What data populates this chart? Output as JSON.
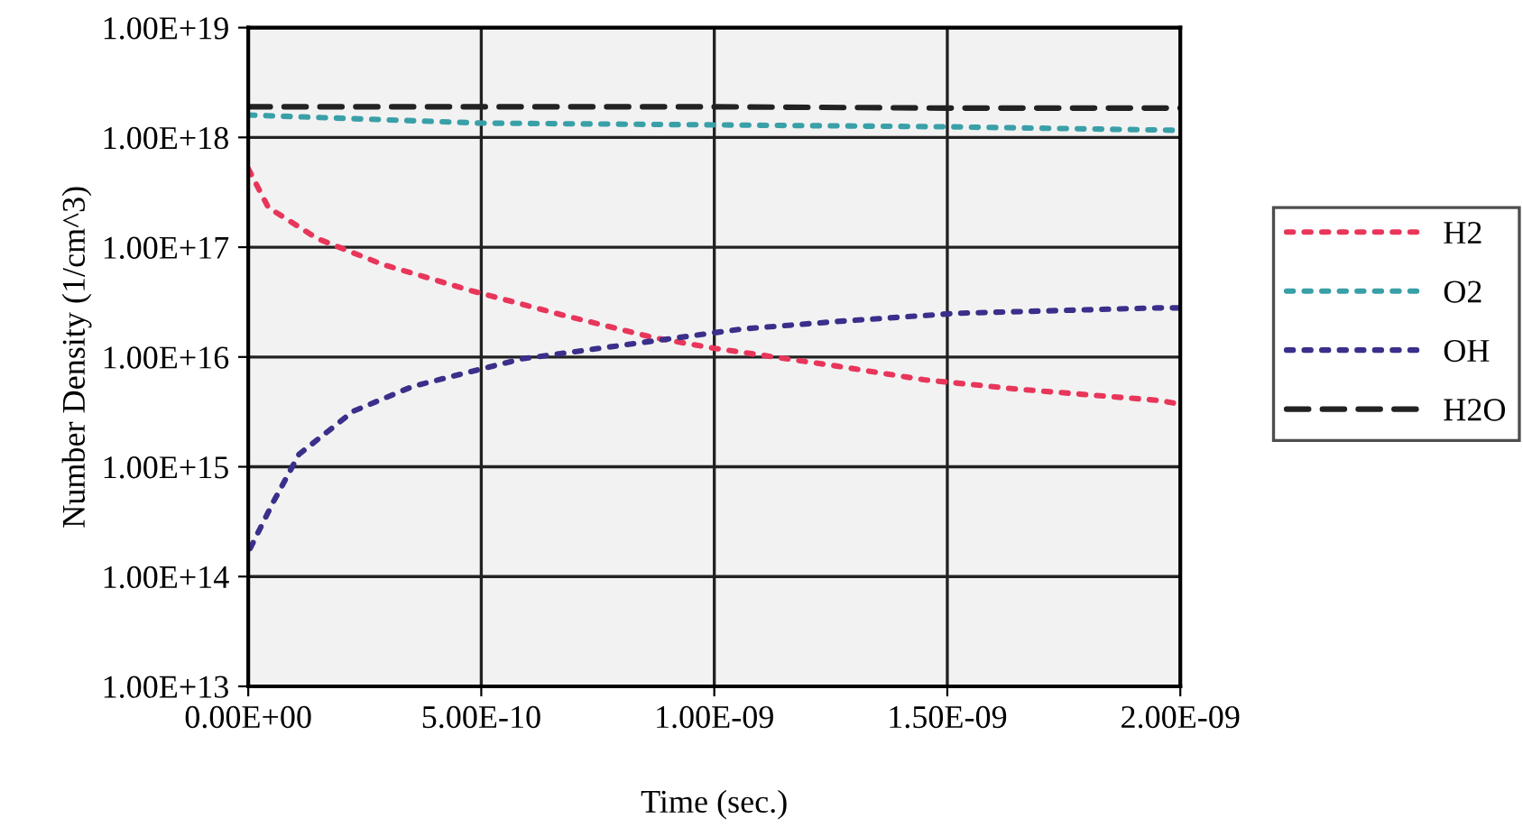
{
  "chart_data": {
    "type": "line",
    "xlabel": "Time (sec.)",
    "ylabel": "Number Density (1/cm^3)",
    "log": "y",
    "grid": true,
    "legend": "right",
    "marker": "none",
    "xlim": [
      0,
      2e-09
    ],
    "xticks": [
      {
        "value": 0,
        "label": "0.00E+00"
      },
      {
        "value": 5e-10,
        "label": "5.00E-10"
      },
      {
        "value": 1e-09,
        "label": "1.00E-09"
      },
      {
        "value": 1.5e-09,
        "label": "1.50E-09"
      },
      {
        "value": 2e-09,
        "label": "2.00E-09"
      }
    ],
    "ylim": [
      10000000000000.0,
      1e+19
    ],
    "yticks": [
      {
        "value": 10000000000000.0,
        "label": "1.00E+13"
      },
      {
        "value": 100000000000000.0,
        "label": "1.00E+14"
      },
      {
        "value": 1000000000000000.0,
        "label": "1.00E+15"
      },
      {
        "value": 1e+16,
        "label": "1.00E+16"
      },
      {
        "value": 1e+17,
        "label": "1.00E+17"
      },
      {
        "value": 1e+18,
        "label": "1.00E+18"
      },
      {
        "value": 1e+19,
        "label": "1.00E+19"
      }
    ],
    "series": [
      {
        "name": "H2",
        "color": "#e8365a",
        "line_style": "dotted",
        "x": [
          0,
          4.3e-11,
          1.48e-10,
          2.87e-10,
          4.8e-10,
          6.76e-10,
          8.7e-10,
          1e-09,
          1.26e-09,
          1.45e-09,
          1.65e-09,
          1.96e-09,
          2e-09
        ],
        "values": [
          5.2e+17,
          2.3e+17,
          1.2e+17,
          7e+16,
          4e+16,
          2.4e+16,
          1.5e+16,
          1.2e+16,
          8300000000000000.0,
          6200000000000000.0,
          5100000000000000.0,
          4000000000000000.0,
          3700000000000000.0
        ]
      },
      {
        "name": "O2",
        "color": "#3aa0a8",
        "line_style": "dotted",
        "x": [
          0,
          5e-10,
          1e-09,
          1.5e-09,
          2e-09
        ],
        "values": [
          1.6e+18,
          1.35e+18,
          1.3e+18,
          1.25e+18,
          1.16e+18
        ]
      },
      {
        "name": "OH",
        "color": "#3a2f8a",
        "line_style": "dotted",
        "x": [
          4e-12,
          5.4e-11,
          1.09e-10,
          2.25e-10,
          3.53e-10,
          4.8e-10,
          5.86e-10,
          8.7e-10,
          1.06e-09,
          1.26e-09,
          1.52e-09,
          1.95e-09,
          2e-09
        ],
        "values": [
          180000000000000.0,
          480000000000000.0,
          1300000000000000.0,
          3200000000000000.0,
          5400000000000000.0,
          7400000000000000.0,
          9600000000000000.0,
          1.4e+16,
          1.8e+16,
          2.1e+16,
          2.5e+16,
          2.8e+16,
          2.8e+16
        ]
      },
      {
        "name": "H2O",
        "color": "#222222",
        "line_style": "dashed",
        "x": [
          0,
          5e-10,
          1e-09,
          1.5e-09,
          2e-09
        ],
        "values": [
          1.9e+18,
          1.9e+18,
          1.9e+18,
          1.85e+18,
          1.85e+18
        ]
      }
    ]
  }
}
